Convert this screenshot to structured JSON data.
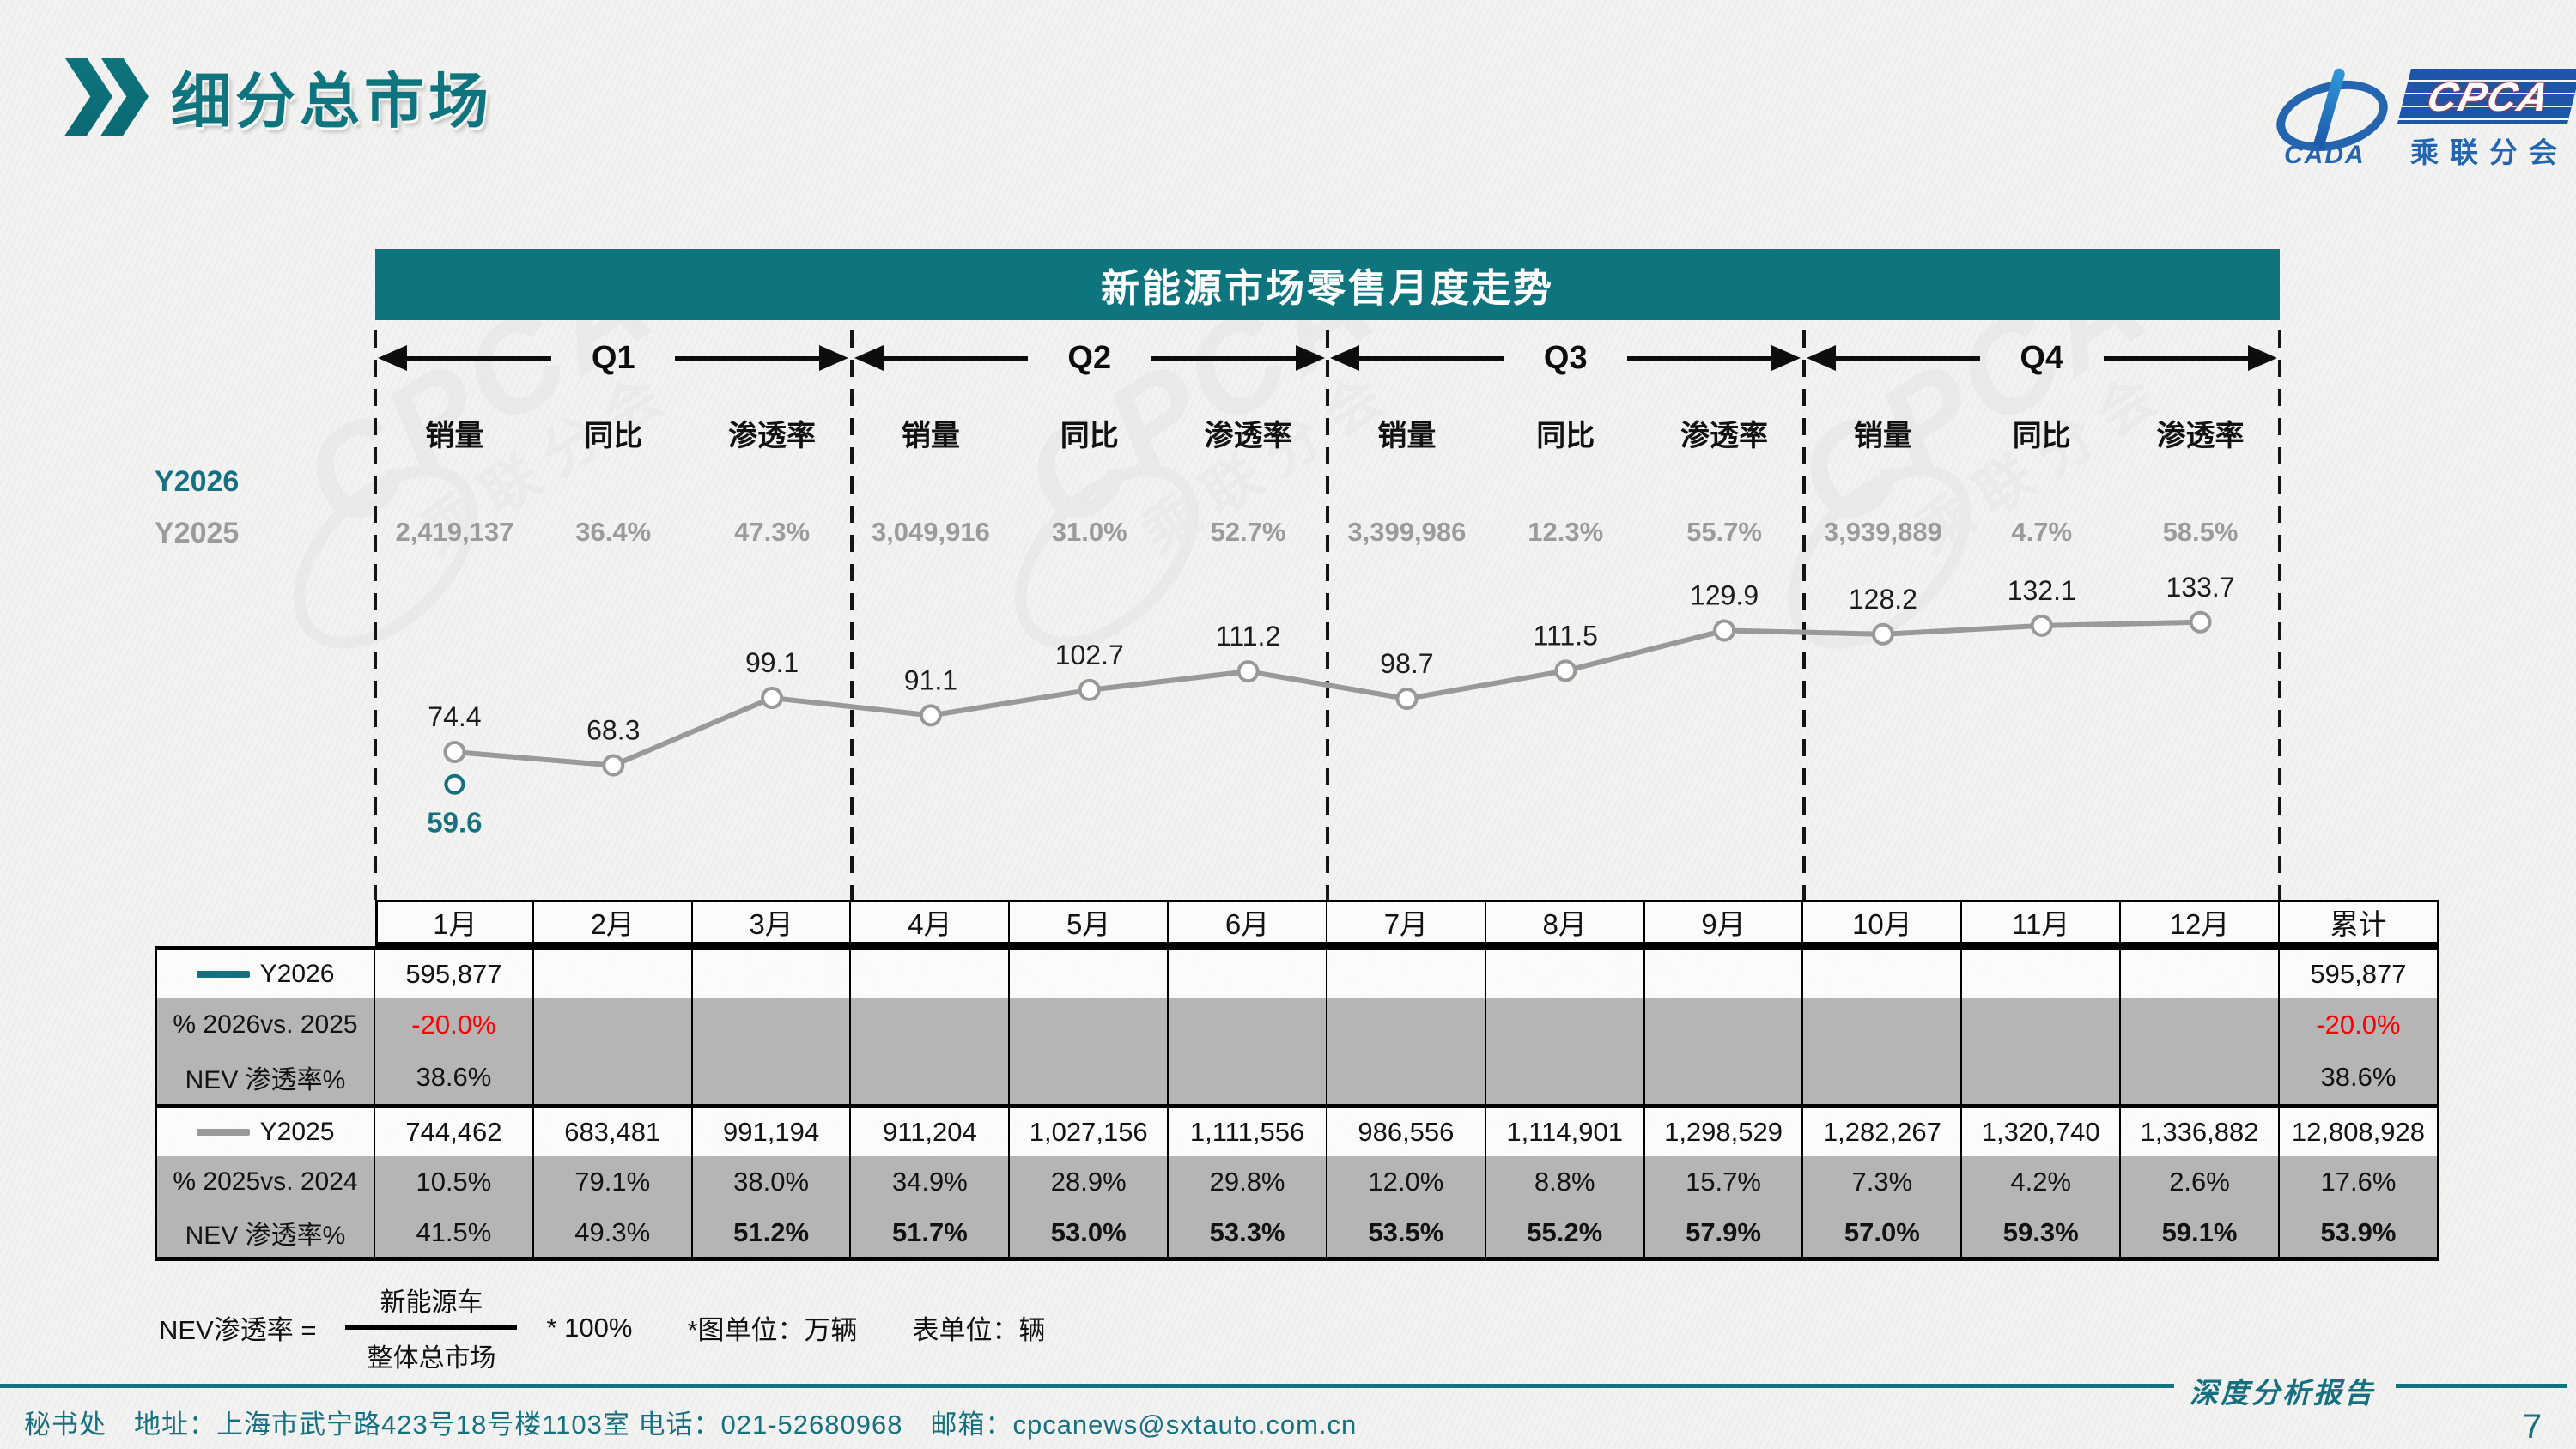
{
  "ui_colors": {
    "teal": "#0e747d",
    "tealText": "#17707f",
    "grayLine": "#999999",
    "grayText": "#9b9b9b",
    "tableGray": "#b5b5b5",
    "red": "#ff0000",
    "logoBlue": "#2565b0"
  },
  "page": {
    "title": "细分总市场",
    "page_number": "7",
    "footer_left": "秘书处　地址：上海市武宁路423号18号楼1103室  电话：021-52680968　邮箱：cpcanews@sxtauto.com.cn",
    "report_label": "深度分析报告"
  },
  "logo": {
    "cada": "CADA",
    "cpca": "CPCA",
    "org": "乘联分会"
  },
  "watermark": {
    "cpca": "CPCA",
    "org": "乘联分会"
  },
  "chart_header": {
    "title": "新能源市场零售月度走势"
  },
  "quarters": [
    "Q1",
    "Q2",
    "Q3",
    "Q4"
  ],
  "summary": {
    "col_headers": [
      "销量",
      "同比",
      "渗透率"
    ],
    "y2026_label": "Y2026",
    "y2025_label": "Y2025",
    "quarter_stats": [
      {
        "quarter": "Q1",
        "sales": "2,419,137",
        "yoy": "36.4%",
        "penetration": "47.3%"
      },
      {
        "quarter": "Q2",
        "sales": "3,049,916",
        "yoy": "31.0%",
        "penetration": "52.7%"
      },
      {
        "quarter": "Q3",
        "sales": "3,399,986",
        "yoy": "12.3%",
        "penetration": "55.7%"
      },
      {
        "quarter": "Q4",
        "sales": "3,939,889",
        "yoy": "4.7%",
        "penetration": "58.5%"
      }
    ]
  },
  "chart_data": {
    "type": "line",
    "title": "新能源市场零售月度走势",
    "x": [
      "1月",
      "2月",
      "3月",
      "4月",
      "5月",
      "6月",
      "7月",
      "8月",
      "9月",
      "10月",
      "11月",
      "12月"
    ],
    "unit_note": "图单位：万辆",
    "ylim": [
      50,
      145
    ],
    "series": [
      {
        "name": "Y2026",
        "color": "#17707f",
        "values": [
          59.6,
          null,
          null,
          null,
          null,
          null,
          null,
          null,
          null,
          null,
          null,
          null
        ]
      },
      {
        "name": "Y2025",
        "color": "#999999",
        "values": [
          74.4,
          68.3,
          99.1,
          91.1,
          102.7,
          111.2,
          98.7,
          111.5,
          129.9,
          128.2,
          132.1,
          133.7
        ]
      }
    ]
  },
  "table": {
    "month_headers": [
      "1月",
      "2月",
      "3月",
      "4月",
      "5月",
      "6月",
      "7月",
      "8月",
      "9月",
      "10月",
      "11月",
      "12月",
      "累计"
    ],
    "rows": [
      {
        "label": "Y2026",
        "legend": "#17707f",
        "band": "white",
        "thick_top": true,
        "cells": [
          "595,877",
          "",
          "",
          "",
          "",
          "",
          "",
          "",
          "",
          "",
          "",
          "",
          "595,877"
        ]
      },
      {
        "label": "% 2026vs. 2025",
        "band": "gray",
        "red": true,
        "cells": [
          "-20.0%",
          "",
          "",
          "",
          "",
          "",
          "",
          "",
          "",
          "",
          "",
          "",
          "-20.0%"
        ]
      },
      {
        "label": "NEV 渗透率%",
        "band": "gray",
        "cells": [
          "38.6%",
          "",
          "",
          "",
          "",
          "",
          "",
          "",
          "",
          "",
          "",
          "",
          "38.6%"
        ]
      },
      {
        "label": "Y2025",
        "legend": "#999999",
        "band": "white",
        "thick_top": true,
        "cells": [
          "744,462",
          "683,481",
          "991,194",
          "911,204",
          "1,027,156",
          "1,111,556",
          "986,556",
          "1,114,901",
          "1,298,529",
          "1,282,267",
          "1,320,740",
          "1,336,882",
          "12,808,928"
        ]
      },
      {
        "label": "% 2025vs. 2024",
        "band": "gray",
        "cells": [
          "10.5%",
          "79.1%",
          "38.0%",
          "34.9%",
          "28.9%",
          "29.8%",
          "12.0%",
          "8.8%",
          "15.7%",
          "7.3%",
          "4.2%",
          "2.6%",
          "17.6%"
        ]
      },
      {
        "label": "NEV 渗透率%",
        "band": "gray",
        "bold": [
          false,
          false,
          true,
          true,
          true,
          true,
          true,
          true,
          true,
          true,
          true,
          true,
          true
        ],
        "cells": [
          "41.5%",
          "49.3%",
          "51.2%",
          "51.7%",
          "53.0%",
          "53.3%",
          "53.5%",
          "55.2%",
          "57.9%",
          "57.0%",
          "59.3%",
          "59.1%",
          "53.9%"
        ]
      }
    ]
  },
  "formula": {
    "lhs": "NEV渗透率 =",
    "numerator": "新能源车",
    "denominator": "整体总市场",
    "multiplier": "* 100%",
    "note_chart": "*图单位：万辆",
    "note_table": "表单位：辆"
  }
}
